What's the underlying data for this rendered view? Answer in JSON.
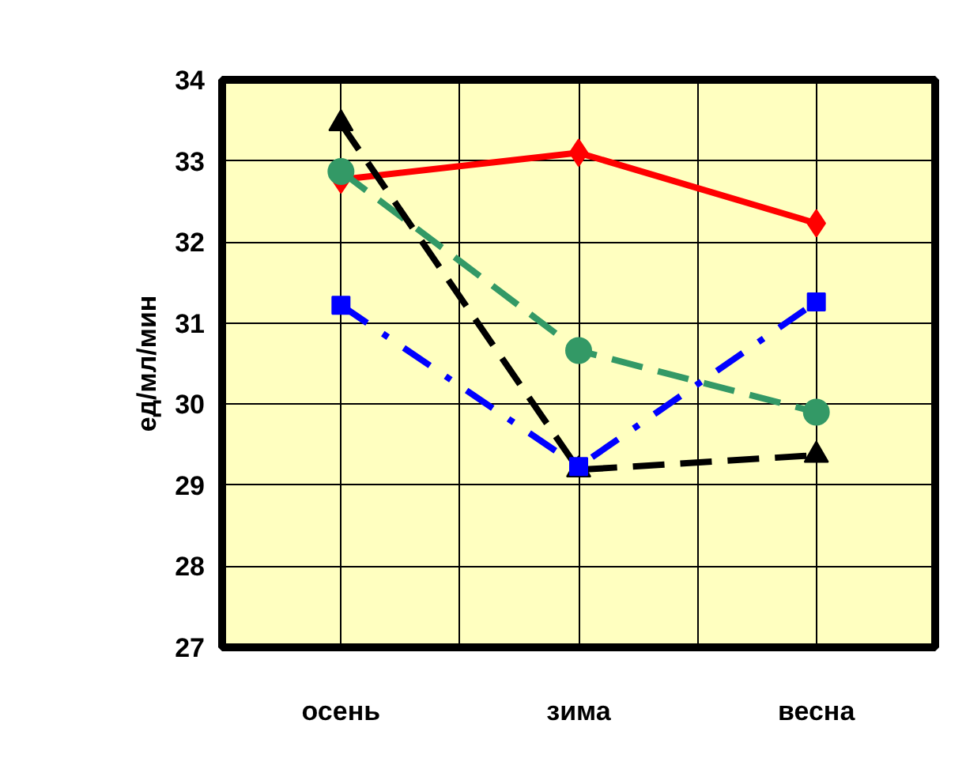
{
  "chart_data": {
    "type": "line",
    "ylabel": "ед/мл/мин",
    "categories": [
      "осень",
      "зима",
      "весна"
    ],
    "ylim": [
      27,
      34
    ],
    "yticks": [
      27,
      28,
      29,
      30,
      31,
      32,
      33,
      34
    ],
    "grid": true,
    "series": [
      {
        "color": "#ff0000",
        "values": [
          32.77,
          33.1,
          32.23
        ],
        "marker": "diamond",
        "line_style": "solid"
      },
      {
        "color": "#339966",
        "values": [
          32.87,
          30.66,
          29.9
        ],
        "marker": "circle",
        "line_style": "dashed"
      },
      {
        "color": "#000000",
        "values": [
          33.46,
          29.19,
          29.37
        ],
        "marker": "triangle",
        "line_style": "dashed"
      },
      {
        "color": "#0000ff",
        "values": [
          31.22,
          29.23,
          31.26
        ],
        "marker": "square",
        "line_style": "dashdot"
      }
    ]
  }
}
